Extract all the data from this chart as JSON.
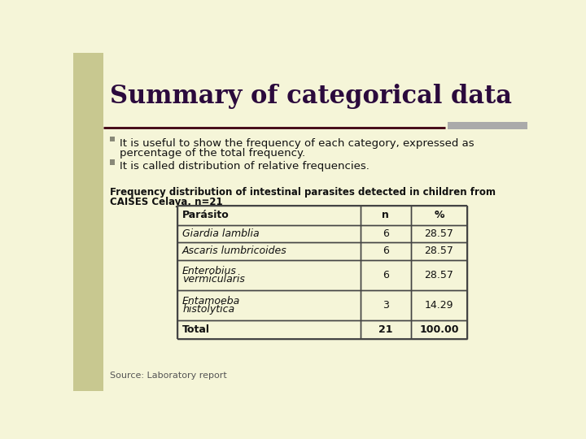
{
  "title": "Summary of categorical data",
  "background_color": "#f5f5d8",
  "title_color": "#2b0a3d",
  "bullet1_line1": "It is useful to show the frequency of each category, expressed as",
  "bullet1_line2": "percentage of the total frequency.",
  "bullet2": "It is called distribution of relative frequencies.",
  "caption_line1": "Frequency distribution of intestinal parasites detected in children from",
  "caption_line2": "CAISES Celaya, n=21",
  "table_headers": [
    "Parásito",
    "n",
    "%"
  ],
  "table_rows": [
    [
      "Giardia lamblia",
      "6",
      "28.57"
    ],
    [
      "Ascaris lumbricoides",
      "6",
      "28.57"
    ],
    [
      "Enterobius\nvermicularis",
      "6",
      "28.57"
    ],
    [
      "Entamoeba\nhistolytica",
      "3",
      "14.29"
    ],
    [
      "Total",
      "21",
      "100.00"
    ]
  ],
  "row_italic": [
    true,
    true,
    true,
    true,
    false
  ],
  "source_text": "Source: Laboratory report",
  "separator_color": "#3d0010",
  "table_border_color": "#444444",
  "bullet_color": "#888878",
  "accent_bar_color": "#aaaaaa",
  "left_bar_color": "#c8c890",
  "title_fontsize": 22,
  "body_fontsize": 9.5,
  "caption_fontsize": 8.5,
  "source_fontsize": 8,
  "table_fontsize": 9
}
